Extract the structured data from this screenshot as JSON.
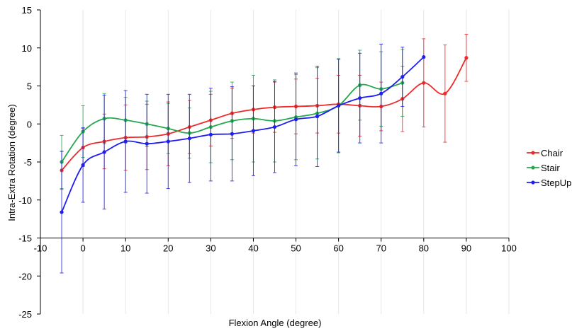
{
  "chart_data": {
    "type": "line",
    "title": "",
    "xlabel": "Flexion Angle (degree)",
    "ylabel": "Intra-Extra Rotation (degree)",
    "xlim": [
      -10,
      100
    ],
    "ylim": [
      -25,
      15
    ],
    "x_ticks": [
      "-10",
      "0",
      "10",
      "20",
      "30",
      "40",
      "50",
      "60",
      "70",
      "80",
      "90",
      "100"
    ],
    "y_ticks": [
      "15",
      "10",
      "5",
      "0",
      "-5",
      "-10",
      "-15",
      "-20",
      "-25"
    ],
    "x_axis_crosses_y_at": -15,
    "grid": {
      "vertical": true,
      "horizontal": false,
      "color": "#e6e6e6"
    },
    "legend": {
      "position": "right"
    },
    "series": [
      {
        "name": "Chair",
        "color": "#ee2a2a",
        "x": [
          -5,
          0,
          5,
          10,
          15,
          20,
          25,
          30,
          35,
          40,
          45,
          50,
          55,
          60,
          65,
          70,
          75,
          80,
          85,
          90
        ],
        "y": [
          -6.1,
          -3.1,
          -2.3,
          -1.8,
          -1.7,
          -1.3,
          -0.4,
          0.5,
          1.4,
          1.9,
          2.2,
          2.3,
          2.4,
          2.6,
          2.4,
          2.3,
          3.3,
          5.4,
          4.0,
          8.7
        ],
        "err": [
          2.5,
          2.5,
          3.6,
          4.3,
          4.3,
          4.2,
          3.5,
          3.4,
          3.3,
          3.1,
          3.3,
          3.6,
          3.6,
          3.8,
          4.0,
          3.2,
          4.3,
          5.8,
          6.4,
          3.1
        ]
      },
      {
        "name": "Stair",
        "color": "#25a84e",
        "x": [
          -5,
          0,
          5,
          10,
          15,
          20,
          25,
          30,
          35,
          40,
          45,
          50,
          55,
          60,
          65,
          70,
          75
        ],
        "y": [
          -5.0,
          -1.0,
          0.7,
          0.5,
          0.0,
          -0.6,
          -1.2,
          -0.4,
          0.4,
          0.7,
          0.4,
          0.9,
          1.4,
          2.4,
          5.1,
          4.6,
          5.4
        ],
        "err": [
          3.5,
          3.4,
          3.3,
          3.0,
          3.0,
          3.3,
          3.3,
          4.7,
          5.1,
          5.7,
          5.4,
          5.6,
          6.0,
          6.2,
          4.6,
          4.9,
          4.4
        ]
      },
      {
        "name": "StepUp",
        "color": "#1f1ff0",
        "x": [
          -5,
          0,
          5,
          10,
          15,
          20,
          25,
          30,
          35,
          40,
          45,
          50,
          55,
          60,
          65,
          70,
          75,
          80
        ],
        "y": [
          -11.6,
          -5.4,
          -3.7,
          -2.3,
          -2.6,
          -2.3,
          -1.9,
          -1.4,
          -1.3,
          -0.9,
          -0.4,
          0.6,
          1.0,
          2.4,
          3.4,
          4.0,
          6.2,
          8.8
        ],
        "err": [
          8.0,
          4.9,
          7.5,
          6.7,
          6.5,
          6.2,
          5.8,
          6.1,
          6.2,
          5.9,
          6.0,
          6.1,
          6.6,
          6.1,
          5.9,
          6.5,
          3.9,
          0.0
        ]
      }
    ]
  }
}
